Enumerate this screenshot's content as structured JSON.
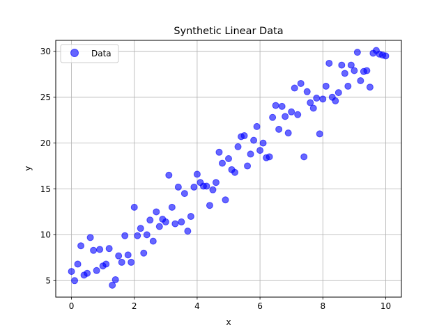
{
  "chart_data": {
    "type": "scatter",
    "title": "Synthetic Linear Data",
    "xlabel": "x",
    "ylabel": "y",
    "xlim": [
      -0.5,
      10.5
    ],
    "ylim": [
      3.2,
      31.2
    ],
    "xticks": [
      0,
      2,
      4,
      6,
      8,
      10
    ],
    "yticks": [
      5,
      10,
      15,
      20,
      25,
      30
    ],
    "grid": true,
    "legend": {
      "placement": "top-left",
      "entries": [
        "Data"
      ]
    },
    "series": [
      {
        "name": "Data",
        "color": "#0000ff",
        "points": [
          [
            0.0,
            6.0
          ],
          [
            0.1,
            5.0
          ],
          [
            0.2,
            6.8
          ],
          [
            0.3,
            8.8
          ],
          [
            0.4,
            5.6
          ],
          [
            0.5,
            5.8
          ],
          [
            0.6,
            9.7
          ],
          [
            0.7,
            8.3
          ],
          [
            0.8,
            6.1
          ],
          [
            0.9,
            8.4
          ],
          [
            1.0,
            6.6
          ],
          [
            1.1,
            6.8
          ],
          [
            1.2,
            8.5
          ],
          [
            1.3,
            4.5
          ],
          [
            1.4,
            5.1
          ],
          [
            1.5,
            7.7
          ],
          [
            1.6,
            7.0
          ],
          [
            1.7,
            9.9
          ],
          [
            1.8,
            7.8
          ],
          [
            1.9,
            7.0
          ],
          [
            2.0,
            13.0
          ],
          [
            2.1,
            9.9
          ],
          [
            2.2,
            10.7
          ],
          [
            2.3,
            8.0
          ],
          [
            2.4,
            10.0
          ],
          [
            2.5,
            11.6
          ],
          [
            2.6,
            9.3
          ],
          [
            2.7,
            12.5
          ],
          [
            2.8,
            10.9
          ],
          [
            2.9,
            11.7
          ],
          [
            3.0,
            11.4
          ],
          [
            3.1,
            16.5
          ],
          [
            3.2,
            13.0
          ],
          [
            3.3,
            11.2
          ],
          [
            3.4,
            15.2
          ],
          [
            3.5,
            11.4
          ],
          [
            3.6,
            14.5
          ],
          [
            3.7,
            10.4
          ],
          [
            3.8,
            12.0
          ],
          [
            3.9,
            15.2
          ],
          [
            4.0,
            16.6
          ],
          [
            4.1,
            15.7
          ],
          [
            4.2,
            15.3
          ],
          [
            4.3,
            15.3
          ],
          [
            4.4,
            13.2
          ],
          [
            4.5,
            14.9
          ],
          [
            4.6,
            15.7
          ],
          [
            4.7,
            19.0
          ],
          [
            4.8,
            17.8
          ],
          [
            4.9,
            13.8
          ],
          [
            5.0,
            18.3
          ],
          [
            5.1,
            17.1
          ],
          [
            5.2,
            16.8
          ],
          [
            5.3,
            19.6
          ],
          [
            5.4,
            20.7
          ],
          [
            5.5,
            20.8
          ],
          [
            5.6,
            17.5
          ],
          [
            5.7,
            18.8
          ],
          [
            5.8,
            20.3
          ],
          [
            5.9,
            21.8
          ],
          [
            6.0,
            19.2
          ],
          [
            6.1,
            20.0
          ],
          [
            6.2,
            18.4
          ],
          [
            6.3,
            18.5
          ],
          [
            6.4,
            22.8
          ],
          [
            6.5,
            24.1
          ],
          [
            6.6,
            21.5
          ],
          [
            6.7,
            24.0
          ],
          [
            6.8,
            22.9
          ],
          [
            6.9,
            21.1
          ],
          [
            7.0,
            23.4
          ],
          [
            7.1,
            26.0
          ],
          [
            7.2,
            23.1
          ],
          [
            7.3,
            26.5
          ],
          [
            7.4,
            18.5
          ],
          [
            7.5,
            25.6
          ],
          [
            7.6,
            24.4
          ],
          [
            7.7,
            23.8
          ],
          [
            7.8,
            24.9
          ],
          [
            7.9,
            21.0
          ],
          [
            8.0,
            24.8
          ],
          [
            8.1,
            26.2
          ],
          [
            8.2,
            28.7
          ],
          [
            8.3,
            25.0
          ],
          [
            8.4,
            24.6
          ],
          [
            8.5,
            25.5
          ],
          [
            8.6,
            28.5
          ],
          [
            8.7,
            27.6
          ],
          [
            8.8,
            26.2
          ],
          [
            8.9,
            28.5
          ],
          [
            9.0,
            27.9
          ],
          [
            9.1,
            29.9
          ],
          [
            9.2,
            26.8
          ],
          [
            9.3,
            27.8
          ],
          [
            9.4,
            27.9
          ],
          [
            9.5,
            26.1
          ],
          [
            9.6,
            29.8
          ],
          [
            9.7,
            30.1
          ],
          [
            9.8,
            29.7
          ],
          [
            9.9,
            29.6
          ],
          [
            10.0,
            29.5
          ]
        ]
      }
    ]
  }
}
